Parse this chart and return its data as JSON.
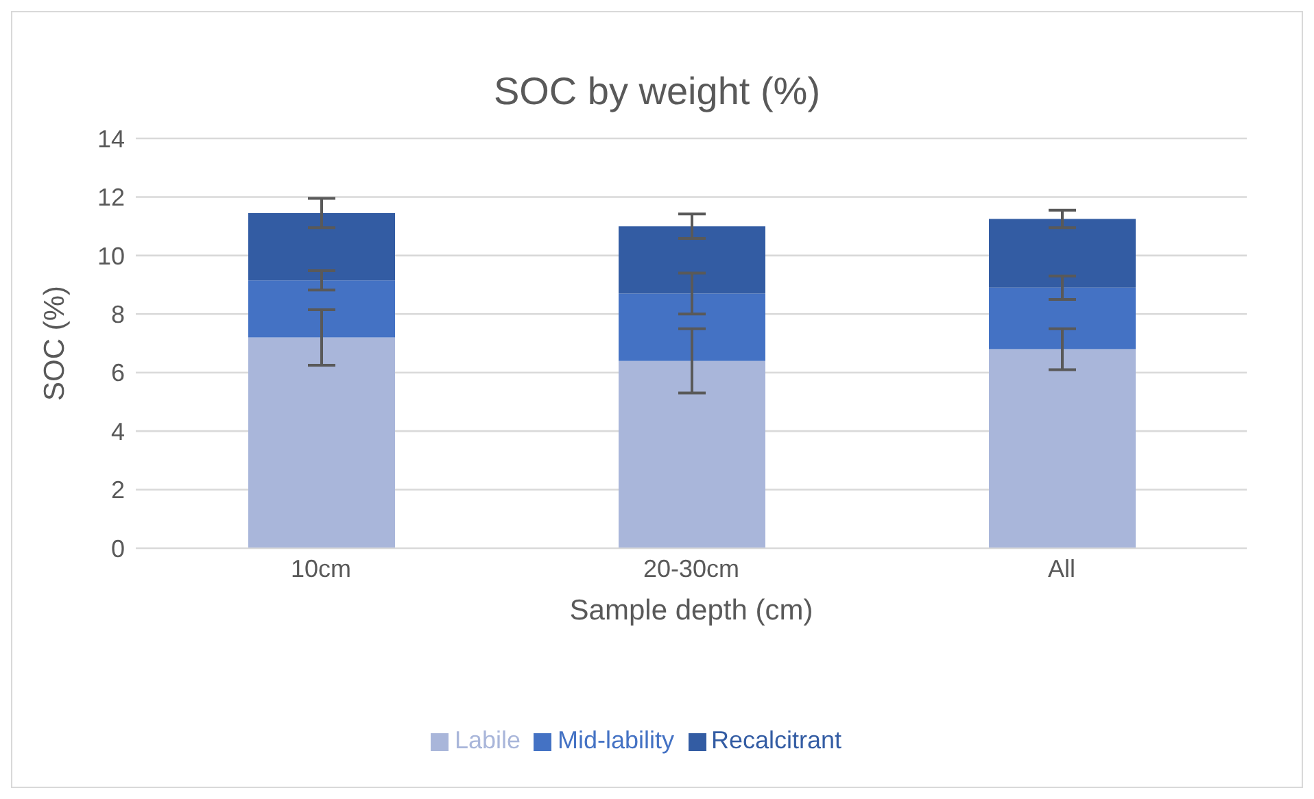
{
  "chart_data": {
    "type": "bar",
    "title": "SOC by weight (%)",
    "xlabel": "Sample depth (cm)",
    "ylabel": "SOC (%)",
    "categories": [
      "10cm",
      "20-30cm",
      "All"
    ],
    "stacked": true,
    "series": [
      {
        "name": "Labile",
        "color": "#a9b6da",
        "values": [
          7.2,
          6.4,
          6.8
        ],
        "errors": [
          0.95,
          1.1,
          0.7
        ]
      },
      {
        "name": "Mid-lability",
        "color": "#4472c4",
        "values": [
          1.95,
          2.3,
          2.1
        ],
        "errors": [
          0.33,
          0.7,
          0.4
        ]
      },
      {
        "name": "Recalcitrant",
        "color": "#335ca3",
        "values": [
          2.3,
          2.3,
          2.35
        ],
        "errors": [
          0.5,
          0.42,
          0.3
        ]
      }
    ],
    "ylim": [
      0,
      14
    ],
    "yticks": [
      0,
      2,
      4,
      6,
      8,
      10,
      12,
      14
    ],
    "grid": "y",
    "legend": "bottom"
  }
}
